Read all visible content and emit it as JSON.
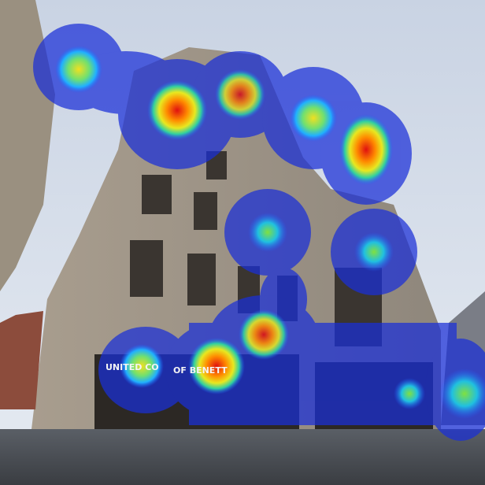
{
  "signs": [
    "UNITED CO",
    "OF BENETT"
  ]
}
